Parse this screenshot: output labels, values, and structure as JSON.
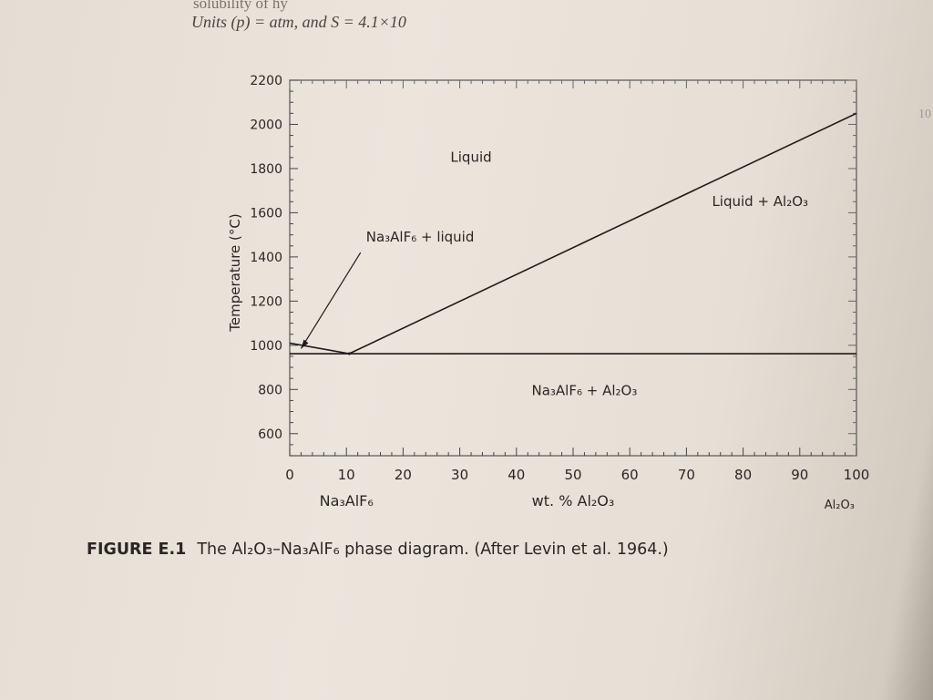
{
  "page_text": {
    "top_line_1": "solubility of hy",
    "top_line_2": "Units (p) = atm, and S = 4.1×10",
    "edge_fragment": "10"
  },
  "caption": {
    "label": "FIGURE E.1",
    "text": "The Al₂O₃–Na₃AlF₆ phase diagram. (After Levin et al. 1964.)"
  },
  "chart_data": {
    "type": "line",
    "title": "",
    "xlabel": "wt. % Al₂O₃",
    "ylabel": "Temperature (°C)",
    "x_end_labels": {
      "left": "Na₃AlF₆",
      "right": "Al₂O₃"
    },
    "xlim": [
      0,
      100
    ],
    "ylim": [
      500,
      2200
    ],
    "x_ticks": [
      "0",
      "10",
      "20",
      "30",
      "40",
      "50",
      "60",
      "70",
      "80",
      "90",
      "100"
    ],
    "y_ticks": [
      "600",
      "800",
      "1000",
      "1200",
      "1400",
      "1600",
      "1800",
      "2000",
      "2200"
    ],
    "grid": false,
    "series": [
      {
        "id": "liquidus-cryolite",
        "x": [
          0,
          10.5
        ],
        "y": [
          1010,
          962
        ]
      },
      {
        "id": "liquidus-alumina",
        "x": [
          10.5,
          100
        ],
        "y": [
          962,
          2050
        ]
      },
      {
        "id": "eutectic-solidus",
        "x": [
          0,
          100
        ],
        "y": [
          962,
          962
        ]
      }
    ],
    "eutectic": {
      "x": 10.5,
      "y": 962
    },
    "region_labels": [
      {
        "text": "Liquid",
        "x": 32,
        "y": 1830
      },
      {
        "text": "Na₃AlF₆ + liquid",
        "x": 23,
        "y": 1470
      },
      {
        "text": "Liquid + Al₂O₃",
        "x": 83,
        "y": 1630
      },
      {
        "text": "Na₃AlF₆ + Al₂O₃",
        "x": 52,
        "y": 775
      }
    ],
    "colors": {
      "line": "#1e1b1a",
      "text": "#2a2624"
    }
  }
}
